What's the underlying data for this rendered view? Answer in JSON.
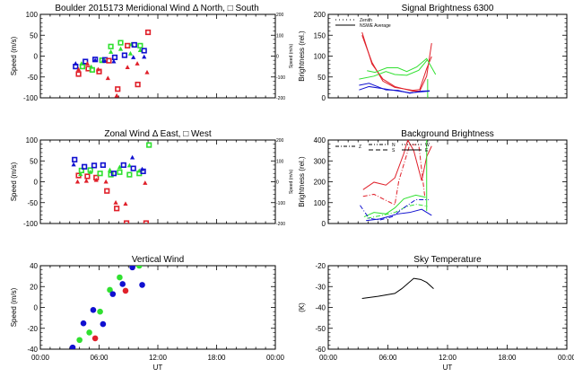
{
  "colors": {
    "red": "#e0202a",
    "green": "#30e030",
    "blue": "#1010d0",
    "black": "#000000"
  },
  "x_ticks": [
    "00:00",
    "06:00",
    "12:00",
    "18:00",
    "00:00"
  ],
  "chart_data": [
    {
      "id": "meridional",
      "type": "scatter",
      "title": "Boulder   2015173     Meridional Wind  Δ North, □ South",
      "ylabel": "Speed (m/s)",
      "ylabel_right": "Speed (m/s)",
      "xlabel": "",
      "xlim": [
        0,
        24
      ],
      "ylim": [
        -100,
        100
      ],
      "yticks": [
        "-100",
        "-50",
        "0",
        "50",
        "100"
      ],
      "yticks_right": [
        "-200",
        "-100",
        "0",
        "100",
        "200"
      ],
      "points": [
        [
          3.6,
          -25,
          "blue",
          "sq"
        ],
        [
          3.6,
          -18,
          "blue",
          "tri"
        ],
        [
          3.9,
          -43,
          "red",
          "sq"
        ],
        [
          3.9,
          -32,
          "red",
          "tri"
        ],
        [
          4.2,
          -18,
          "green",
          "tri"
        ],
        [
          4.3,
          -25,
          "green",
          "sq"
        ],
        [
          4.6,
          -13,
          "blue",
          "sq"
        ],
        [
          4.8,
          -18,
          "red",
          "tri"
        ],
        [
          4.9,
          -30,
          "red",
          "sq"
        ],
        [
          5.2,
          -26,
          "green",
          "tri"
        ],
        [
          5.3,
          -33,
          "green",
          "sq"
        ],
        [
          5.6,
          -8,
          "blue",
          "sq"
        ],
        [
          5.6,
          -10,
          "blue",
          "tri"
        ],
        [
          5.9,
          -32,
          "red",
          "tri"
        ],
        [
          6.0,
          -37,
          "red",
          "sq"
        ],
        [
          6.3,
          -10,
          "green",
          "sq"
        ],
        [
          6.4,
          -11,
          "green",
          "tri"
        ],
        [
          6.6,
          -9,
          "blue",
          "sq"
        ],
        [
          6.6,
          -12,
          "blue",
          "tri"
        ],
        [
          7.0,
          -11,
          "red",
          "sq"
        ],
        [
          6.9,
          -53,
          "red",
          "tri"
        ],
        [
          7.2,
          23,
          "green",
          "sq"
        ],
        [
          7.2,
          10,
          "green",
          "tri"
        ],
        [
          7.6,
          -3,
          "blue",
          "sq"
        ],
        [
          7.5,
          -13,
          "blue",
          "tri"
        ],
        [
          7.9,
          -79,
          "red",
          "sq"
        ],
        [
          7.8,
          -95,
          "red",
          "tri"
        ],
        [
          8.2,
          32,
          "green",
          "sq"
        ],
        [
          8.2,
          17,
          "green",
          "tri"
        ],
        [
          8.9,
          25,
          "red",
          "sq"
        ],
        [
          8.9,
          -27,
          "red",
          "tri"
        ],
        [
          8.6,
          2,
          "blue",
          "sq"
        ],
        [
          9.3,
          28,
          "green",
          "tri"
        ],
        [
          9.2,
          6,
          "green",
          "tri"
        ],
        [
          9.6,
          27,
          "blue",
          "sq"
        ],
        [
          9.5,
          -3,
          "blue",
          "tri"
        ],
        [
          9.95,
          -68,
          "red",
          "sq"
        ],
        [
          9.9,
          -18,
          "red",
          "tri"
        ],
        [
          10.2,
          25,
          "green",
          "sq"
        ],
        [
          10.2,
          14,
          "green",
          "tri"
        ],
        [
          10.6,
          13,
          "blue",
          "sq"
        ],
        [
          10.6,
          -2,
          "blue",
          "tri"
        ],
        [
          11.0,
          57,
          "red",
          "sq"
        ],
        [
          10.9,
          -39,
          "red",
          "tri"
        ]
      ]
    },
    {
      "id": "zonal",
      "type": "scatter",
      "title": "Zonal Wind     Δ East, □ West",
      "ylabel": "Speed (m/s)",
      "ylabel_right": "Speed (m/s)",
      "xlabel": "",
      "xlim": [
        0,
        24
      ],
      "ylim": [
        -100,
        100
      ],
      "yticks": [
        "-100",
        "-50",
        "0",
        "50",
        "100"
      ],
      "yticks_right": [
        "-200",
        "-100",
        "0",
        "100",
        "200"
      ],
      "points": [
        [
          3.5,
          53,
          "blue",
          "sq"
        ],
        [
          3.4,
          41,
          "blue",
          "tri"
        ],
        [
          3.8,
          0,
          "red",
          "tri"
        ],
        [
          3.9,
          15,
          "red",
          "sq"
        ],
        [
          4.1,
          18,
          "green",
          "tri"
        ],
        [
          4.2,
          27,
          "green",
          "sq"
        ],
        [
          4.5,
          36,
          "blue",
          "sq"
        ],
        [
          4.7,
          2,
          "red",
          "tri"
        ],
        [
          4.8,
          13,
          "red",
          "sq"
        ],
        [
          5.1,
          28,
          "green",
          "sq"
        ],
        [
          5.1,
          23,
          "green",
          "tri"
        ],
        [
          5.5,
          39,
          "blue",
          "sq"
        ],
        [
          5.7,
          10,
          "red",
          "sq"
        ],
        [
          5.7,
          4,
          "red",
          "tri"
        ],
        [
          6.1,
          20,
          "green",
          "sq"
        ],
        [
          6.4,
          40,
          "blue",
          "sq"
        ],
        [
          6.7,
          0,
          "red",
          "tri"
        ],
        [
          6.8,
          -22,
          "red",
          "sq"
        ],
        [
          7.1,
          28,
          "green",
          "tri"
        ],
        [
          7.2,
          17,
          "green",
          "sq"
        ],
        [
          7.5,
          20,
          "blue",
          "sq"
        ],
        [
          7.7,
          -50,
          "red",
          "tri"
        ],
        [
          7.8,
          -64,
          "red",
          "sq"
        ],
        [
          8.1,
          23,
          "green",
          "sq"
        ],
        [
          8.1,
          35,
          "green",
          "tri"
        ],
        [
          8.5,
          40,
          "blue",
          "sq"
        ],
        [
          8.7,
          -53,
          "red",
          "tri"
        ],
        [
          8.8,
          -99,
          "red",
          "sq"
        ],
        [
          9.1,
          39,
          "green",
          "tri"
        ],
        [
          9.1,
          17,
          "green",
          "sq"
        ],
        [
          9.4,
          58,
          "blue",
          "tri"
        ],
        [
          9.5,
          32,
          "blue",
          "sq"
        ],
        [
          10.1,
          20,
          "green",
          "sq"
        ],
        [
          10.1,
          26,
          "green",
          "tri"
        ],
        [
          10.5,
          25,
          "blue",
          "sq"
        ],
        [
          10.4,
          30,
          "blue",
          "tri"
        ],
        [
          10.7,
          -3,
          "red",
          "tri"
        ],
        [
          10.8,
          -99,
          "red",
          "sq"
        ],
        [
          11.1,
          88,
          "green",
          "sq"
        ]
      ]
    },
    {
      "id": "vertical",
      "type": "scatter",
      "title": "Vertical Wind",
      "ylabel": "Speed (m/s)",
      "xlabel": "UT",
      "xlim": [
        0,
        24
      ],
      "ylim": [
        -50,
        50
      ],
      "yticks": [
        "-40",
        "-20",
        "0",
        "20",
        "40"
      ],
      "points": [
        [
          3.3,
          -48,
          "blue",
          "dot"
        ],
        [
          4.0,
          -39,
          "green",
          "dot"
        ],
        [
          4.4,
          -19,
          "blue",
          "dot"
        ],
        [
          5.0,
          -30,
          "green",
          "dot"
        ],
        [
          5.4,
          -3,
          "blue",
          "dot"
        ],
        [
          5.6,
          -37,
          "red",
          "dot"
        ],
        [
          6.1,
          -5,
          "green",
          "dot"
        ],
        [
          6.4,
          -20,
          "blue",
          "dot"
        ],
        [
          7.1,
          21,
          "green",
          "dot"
        ],
        [
          7.4,
          16,
          "blue",
          "dot"
        ],
        [
          8.1,
          36,
          "green",
          "dot"
        ],
        [
          8.4,
          28,
          "blue",
          "dot"
        ],
        [
          8.7,
          20,
          "red",
          "dot"
        ],
        [
          9.4,
          48,
          "blue",
          "dot"
        ],
        [
          10.1,
          50,
          "green",
          "dot"
        ],
        [
          10.4,
          27,
          "blue",
          "dot"
        ]
      ]
    },
    {
      "id": "signal",
      "type": "line",
      "title": "Signal Brightness     6300",
      "ylabel": "Brightness (rel.)",
      "xlabel": "",
      "xlim": [
        0,
        24
      ],
      "ylim": [
        0,
        200
      ],
      "yticks": [
        "0",
        "50",
        "100",
        "150",
        "200"
      ],
      "legend": [
        "Zenith",
        "NSWE Average"
      ],
      "series": [
        {
          "color": "red",
          "points": [
            [
              3.4,
              157
            ],
            [
              4.4,
              81
            ],
            [
              5.5,
              45
            ],
            [
              6.7,
              27
            ],
            [
              8.5,
              16
            ],
            [
              9.2,
              16
            ],
            [
              9.9,
              52
            ],
            [
              10.4,
              131
            ]
          ]
        },
        {
          "color": "red",
          "points": [
            [
              3.4,
              150
            ],
            [
              4.4,
              85
            ],
            [
              5.5,
              40
            ],
            [
              6.7,
              25
            ],
            [
              8.5,
              18
            ],
            [
              9.2,
              20
            ],
            [
              9.9,
              70
            ],
            [
              10.4,
              99
            ]
          ]
        },
        {
          "color": "green",
          "points": [
            [
              3.9,
              65
            ],
            [
              4.7,
              61
            ],
            [
              5.9,
              72
            ],
            [
              7.0,
              72
            ],
            [
              7.9,
              63
            ],
            [
              8.9,
              74
            ],
            [
              9.9,
              94
            ],
            [
              10.8,
              56
            ]
          ]
        },
        {
          "color": "green",
          "points": [
            [
              3.1,
              45
            ],
            [
              4.6,
              52
            ],
            [
              5.8,
              63
            ],
            [
              6.7,
              56
            ],
            [
              7.9,
              54
            ],
            [
              9.1,
              66
            ],
            [
              10.0,
              92
            ]
          ]
        },
        {
          "color": "green",
          "points": [
            [
              10.0,
              0
            ],
            [
              10.0,
              45
            ]
          ]
        },
        {
          "color": "blue",
          "points": [
            [
              3.1,
              30
            ],
            [
              4.1,
              35
            ],
            [
              5.8,
              19
            ],
            [
              7.0,
              18
            ],
            [
              8.2,
              11
            ],
            [
              9.4,
              16
            ],
            [
              10.2,
              17
            ]
          ]
        },
        {
          "color": "blue",
          "points": [
            [
              3.1,
              19
            ],
            [
              4.1,
              27
            ],
            [
              5.8,
              21
            ],
            [
              8.2,
              12
            ],
            [
              10.2,
              16
            ]
          ]
        }
      ]
    },
    {
      "id": "background",
      "type": "line",
      "title": "Background Brightness",
      "ylabel": "Brightness (rel.)",
      "xlabel": "",
      "xlim": [
        0,
        24
      ],
      "ylim": [
        0,
        400
      ],
      "yticks": [
        "0",
        "100",
        "200",
        "300",
        "400"
      ],
      "legend": [
        "Z",
        "N",
        "S",
        "W",
        "E"
      ],
      "series": [
        {
          "color": "red",
          "points": [
            [
              3.5,
              162
            ],
            [
              4.6,
              198
            ],
            [
              5.8,
              184
            ],
            [
              6.7,
              219
            ],
            [
              7.6,
              335
            ],
            [
              8.0,
              400
            ],
            [
              8.6,
              349
            ],
            [
              9.4,
              205
            ],
            [
              9.9,
              320
            ],
            [
              10.4,
              371
            ]
          ]
        },
        {
          "color": "red",
          "points": [
            [
              3.5,
              130
            ],
            [
              4.6,
              140
            ],
            [
              5.8,
              111
            ],
            [
              6.7,
              90
            ],
            [
              7.1,
              205
            ],
            [
              8.2,
              378
            ],
            [
              9.1,
              378
            ],
            [
              9.7,
              133
            ]
          ]
        },
        {
          "color": "green",
          "points": [
            [
              3.6,
              32
            ],
            [
              4.6,
              53
            ],
            [
              5.8,
              46
            ],
            [
              6.7,
              75
            ],
            [
              7.6,
              118
            ],
            [
              8.8,
              136
            ],
            [
              9.8,
              126
            ]
          ]
        },
        {
          "color": "green",
          "points": [
            [
              3.9,
              25
            ],
            [
              5.1,
              36
            ],
            [
              6.7,
              53
            ],
            [
              7.9,
              82
            ],
            [
              8.9,
              92
            ],
            [
              10.0,
              82
            ]
          ]
        },
        {
          "color": "green",
          "points": [
            [
              9.9,
              60
            ],
            [
              9.9,
              400
            ]
          ]
        },
        {
          "color": "blue",
          "points": [
            [
              3.2,
              87
            ],
            [
              4.1,
              25
            ],
            [
              5.2,
              17
            ],
            [
              6.4,
              32
            ],
            [
              7.6,
              75
            ],
            [
              8.8,
              114
            ],
            [
              10.1,
              114
            ]
          ]
        },
        {
          "color": "blue",
          "points": [
            [
              3.8,
              14
            ],
            [
              5.2,
              22
            ],
            [
              7.0,
              46
            ],
            [
              8.2,
              53
            ],
            [
              9.4,
              68
            ],
            [
              10.4,
              39
            ]
          ]
        }
      ]
    },
    {
      "id": "sky",
      "type": "line",
      "title": "Sky Temperature",
      "ylabel": "(K)",
      "xlabel": "UT",
      "xlim": [
        0,
        24
      ],
      "ylim": [
        -60,
        -20
      ],
      "yticks": [
        "-60",
        "-50",
        "-40",
        "-30",
        "-20"
      ],
      "series": [
        {
          "color": "black",
          "points": [
            [
              3.4,
              -35.7
            ],
            [
              5.0,
              -34.7
            ],
            [
              6.7,
              -33.3
            ],
            [
              7.4,
              -31
            ],
            [
              8.6,
              -26.1
            ],
            [
              9.3,
              -26.6
            ],
            [
              9.9,
              -28
            ],
            [
              10.6,
              -31
            ]
          ]
        }
      ]
    }
  ]
}
